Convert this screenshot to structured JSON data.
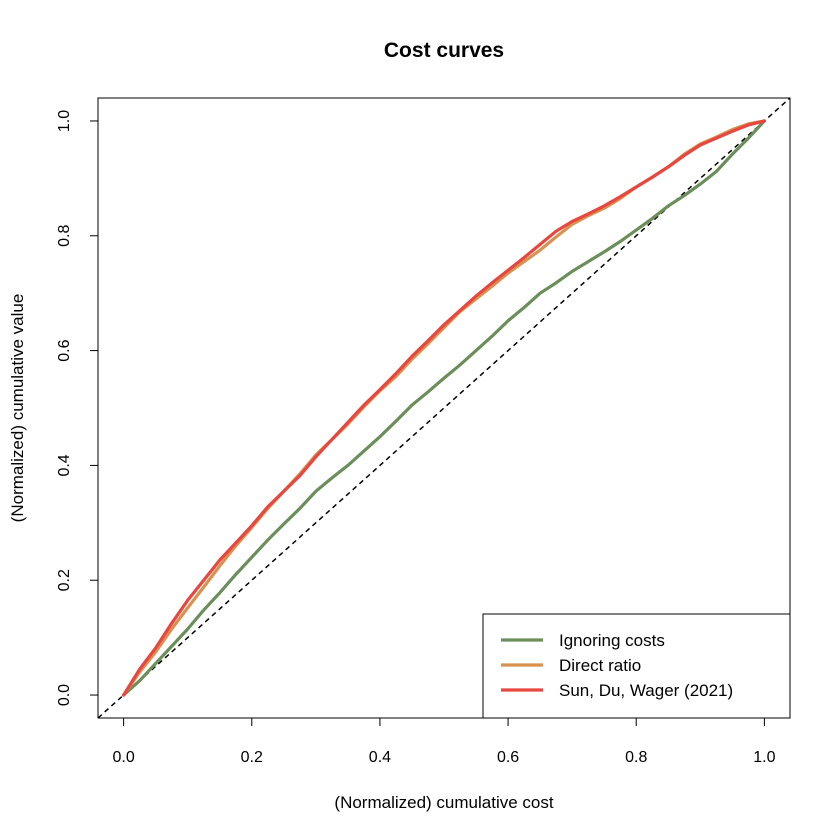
{
  "chart_data": {
    "type": "line",
    "title": "Cost curves",
    "xlabel": "(Normalized) cumulative cost",
    "ylabel": "(Normalized) cumulative value",
    "xlim": [
      -0.04,
      1.04
    ],
    "ylim": [
      -0.04,
      1.04
    ],
    "xticks": [
      "0.0",
      "0.2",
      "0.4",
      "0.6",
      "0.8",
      "1.0"
    ],
    "yticks": [
      "0.0",
      "0.2",
      "0.4",
      "0.6",
      "0.8",
      "1.0"
    ],
    "grid": false,
    "legend_position": "bottom-right",
    "reference_line": {
      "style": "dashed",
      "color": "#000000",
      "x": [
        -0.04,
        1.04
      ],
      "y": [
        -0.04,
        1.04
      ]
    },
    "series": [
      {
        "name": "Ignoring costs",
        "color": "#6B8E5A",
        "x": [
          0.0,
          0.025,
          0.05,
          0.075,
          0.1,
          0.125,
          0.15,
          0.175,
          0.2,
          0.225,
          0.25,
          0.275,
          0.3,
          0.325,
          0.35,
          0.375,
          0.4,
          0.425,
          0.45,
          0.475,
          0.5,
          0.525,
          0.55,
          0.575,
          0.6,
          0.625,
          0.65,
          0.675,
          0.7,
          0.725,
          0.75,
          0.775,
          0.8,
          0.825,
          0.85,
          0.875,
          0.9,
          0.925,
          0.95,
          0.975,
          1.0
        ],
        "y": [
          0.0,
          0.025,
          0.055,
          0.085,
          0.115,
          0.148,
          0.178,
          0.21,
          0.24,
          0.27,
          0.298,
          0.325,
          0.355,
          0.378,
          0.4,
          0.425,
          0.45,
          0.477,
          0.505,
          0.528,
          0.552,
          0.575,
          0.6,
          0.625,
          0.652,
          0.675,
          0.7,
          0.718,
          0.738,
          0.755,
          0.772,
          0.79,
          0.81,
          0.83,
          0.852,
          0.87,
          0.89,
          0.912,
          0.942,
          0.97,
          1.0
        ]
      },
      {
        "name": "Direct ratio",
        "color": "#D8914F",
        "x": [
          0.0,
          0.025,
          0.05,
          0.075,
          0.1,
          0.125,
          0.15,
          0.175,
          0.2,
          0.225,
          0.25,
          0.275,
          0.3,
          0.325,
          0.35,
          0.375,
          0.4,
          0.425,
          0.45,
          0.475,
          0.5,
          0.525,
          0.55,
          0.575,
          0.6,
          0.625,
          0.65,
          0.675,
          0.7,
          0.725,
          0.75,
          0.775,
          0.8,
          0.825,
          0.85,
          0.875,
          0.9,
          0.925,
          0.95,
          0.975,
          1.0
        ],
        "y": [
          0.0,
          0.04,
          0.075,
          0.115,
          0.152,
          0.188,
          0.225,
          0.26,
          0.292,
          0.325,
          0.355,
          0.385,
          0.418,
          0.445,
          0.472,
          0.502,
          0.53,
          0.555,
          0.585,
          0.612,
          0.64,
          0.668,
          0.69,
          0.712,
          0.735,
          0.755,
          0.775,
          0.798,
          0.82,
          0.835,
          0.848,
          0.865,
          0.885,
          0.902,
          0.92,
          0.942,
          0.96,
          0.972,
          0.985,
          0.995,
          1.0
        ]
      },
      {
        "name": "Sun, Du, Wager (2021)",
        "color": "#E8473F",
        "x": [
          0.0,
          0.025,
          0.05,
          0.075,
          0.1,
          0.125,
          0.15,
          0.175,
          0.2,
          0.225,
          0.25,
          0.275,
          0.3,
          0.325,
          0.35,
          0.375,
          0.4,
          0.425,
          0.45,
          0.475,
          0.5,
          0.525,
          0.55,
          0.575,
          0.6,
          0.625,
          0.65,
          0.675,
          0.7,
          0.725,
          0.75,
          0.775,
          0.8,
          0.825,
          0.85,
          0.875,
          0.9,
          0.925,
          0.95,
          0.975,
          1.0
        ],
        "y": [
          0.0,
          0.045,
          0.082,
          0.125,
          0.165,
          0.2,
          0.235,
          0.265,
          0.295,
          0.328,
          0.355,
          0.382,
          0.415,
          0.445,
          0.475,
          0.505,
          0.532,
          0.56,
          0.59,
          0.617,
          0.645,
          0.67,
          0.695,
          0.718,
          0.74,
          0.762,
          0.785,
          0.808,
          0.825,
          0.838,
          0.852,
          0.868,
          0.885,
          0.902,
          0.92,
          0.94,
          0.958,
          0.97,
          0.982,
          0.993,
          1.0
        ]
      }
    ]
  }
}
